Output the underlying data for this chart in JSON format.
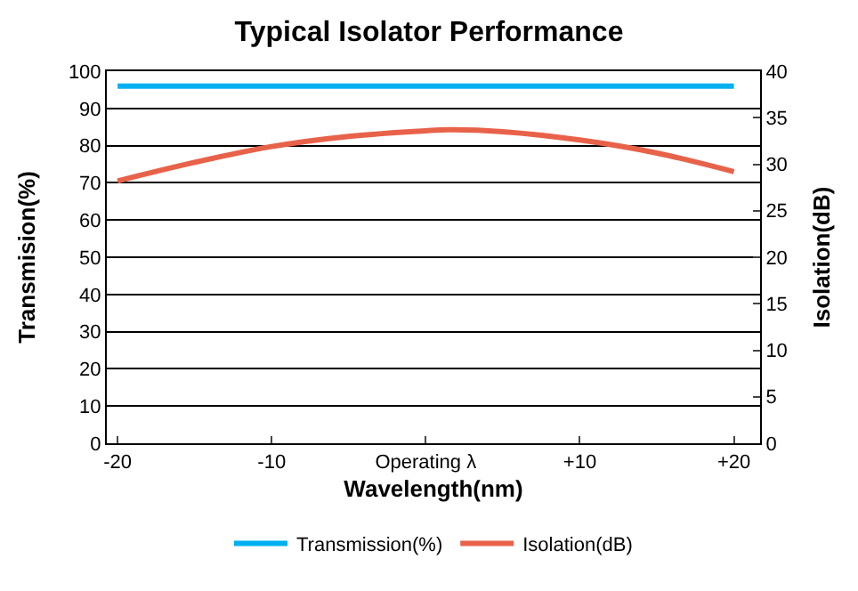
{
  "chart_data": {
    "type": "line",
    "title": "Typical Isolator Performance",
    "xlabel": "Wavelength(nm)",
    "ylabel": "Transmision(%)",
    "y2label": "Isolation(dB)",
    "xlim": [
      -20.7,
      21.7
    ],
    "xticks": [
      {
        "value": -20,
        "label": "-20"
      },
      {
        "value": -10,
        "label": "-10"
      },
      {
        "value": 0,
        "label": "Operating λ"
      },
      {
        "value": 10,
        "label": "+10"
      },
      {
        "value": 20,
        "label": "+20"
      }
    ],
    "ylim": [
      0,
      100
    ],
    "yticks": [
      0,
      10,
      20,
      30,
      40,
      50,
      60,
      70,
      80,
      90,
      100
    ],
    "y2lim": [
      0,
      40
    ],
    "y2ticks": [
      0,
      5,
      10,
      15,
      20,
      25,
      30,
      35,
      40
    ],
    "grid": "y",
    "legend": "bottom",
    "marker": "none",
    "line_style": "solid",
    "series": [
      {
        "name": "Transmission(%)",
        "color": "#00b0f0",
        "x": [
          -20,
          20
        ],
        "values": [
          96,
          96
        ]
      },
      {
        "name": "Isolation(dB)",
        "color": "#e8624a",
        "axis": "y2",
        "x": [
          -20,
          -15,
          -10,
          -5,
          0,
          1.5,
          5,
          10,
          15,
          20
        ],
        "values": [
          28.2,
          30.2,
          31.9,
          33.0,
          33.6,
          33.7,
          33.5,
          32.6,
          31.2,
          29.2
        ]
      }
    ]
  }
}
